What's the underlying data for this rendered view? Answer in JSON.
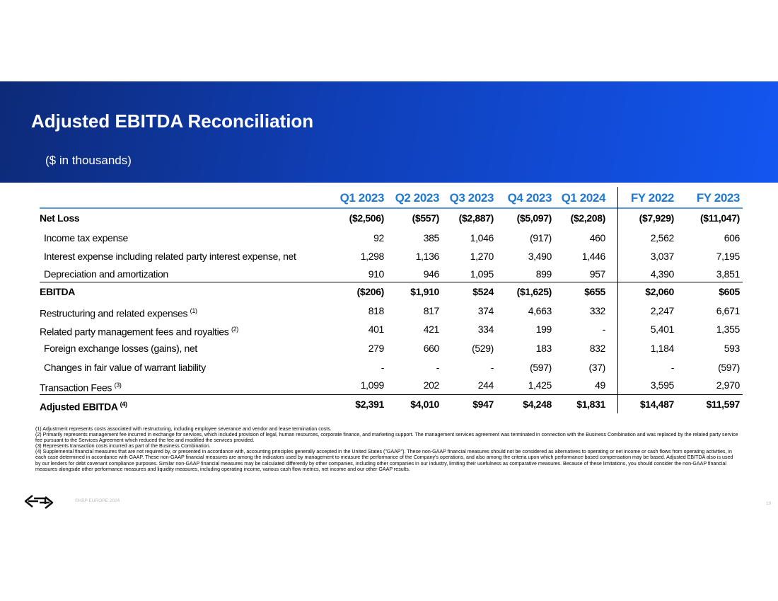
{
  "header": {
    "title": "Adjusted EBITDA Reconciliation",
    "subtitle": "($ in thousands)"
  },
  "table": {
    "columns": [
      "Q1 2023",
      "Q2 2023",
      "Q3 2023",
      "Q4 2023",
      "Q1 2024",
      "FY 2022",
      "FY 2023"
    ],
    "rows": [
      {
        "label": "Net Loss",
        "note": null,
        "values": [
          "($2,506)",
          "($557)",
          "($2,887)",
          "($5,097)",
          "($2,208)",
          "($7,929)",
          "($11,047)"
        ]
      },
      {
        "label": "Income tax expense",
        "note": null,
        "values": [
          "92",
          "385",
          "1,046",
          "(917)",
          "460",
          "2,562",
          "606"
        ]
      },
      {
        "label": "Interest expense including related party interest expense, net",
        "note": null,
        "values": [
          "1,298",
          "1,136",
          "1,270",
          "3,490",
          "1,446",
          "3,037",
          "7,195"
        ]
      },
      {
        "label": "Depreciation and amortization",
        "note": null,
        "values": [
          "910",
          "946",
          "1,095",
          "899",
          "957",
          "4,390",
          "3,851"
        ]
      },
      {
        "label": "EBITDA",
        "note": null,
        "values": [
          "($206)",
          "$1,910",
          "$524",
          "($1,625)",
          "$655",
          "$2,060",
          "$605"
        ]
      },
      {
        "label": "Restructuring and related expenses",
        "note": "(1)",
        "values": [
          "818",
          "817",
          "374",
          "4,663",
          "332",
          "2,247",
          "6,671"
        ]
      },
      {
        "label": "Related party management fees and royalties",
        "note": "(2)",
        "values": [
          "401",
          "421",
          "334",
          "199",
          "-",
          "5,401",
          "1,355"
        ]
      },
      {
        "label": "Foreign exchange losses (gains), net",
        "note": null,
        "values": [
          "279",
          "660",
          "(529)",
          "183",
          "832",
          "1,184",
          "593"
        ]
      },
      {
        "label": "Changes in fair value of warrant liability",
        "note": null,
        "values": [
          "-",
          "-",
          "-",
          "(597)",
          "(37)",
          "-",
          "(597)"
        ]
      },
      {
        "label": "Transaction Fees",
        "note": "(3)",
        "values": [
          "1,099",
          "202",
          "244",
          "1,425",
          "49",
          "3,595",
          "2,970"
        ]
      },
      {
        "label": "Adjusted EBITDA",
        "note": "(4)",
        "values": [
          "$2,391",
          "$4,010",
          "$947",
          "$4,248",
          "$1,831",
          "$14,487",
          "$11,597"
        ]
      }
    ]
  },
  "footnotes": [
    "(1) Adjustment represents costs associated with restructuring, including employee severance and vendor and lease termination costs.",
    "(2) Primarily represents management fee incurred in exchange for services, which included provision of legal, human resources, corporate finance, and marketing support. The management services agreement was terminated in connection with the Business Combination and was replaced by the related party service fee pursuant to the Services Agreement which reduced the fee and modified the services provided.",
    "(3) Represents transaction costs incurred as part of the Business Combination.",
    "(4) Supplemental financial measures that are not required by, or presented in accordance with, accounting principles generally accepted in the United States (\"GAAP\"). These non-GAAP financial measures should not be considered as alternatives to operating or net income or cash flows from operating activities, in each case determined in accordance with GAAP. These non-GAAP financial measures are among the indicators used by management to measure the performance of the Company's operations, and also among the criteria upon which performance-based compensation may be based. Adjusted EBITDA also is used by our lenders for debt covenant compliance purposes. Similar non-GAAP financial measures may be calculated differently by other companies, including other companies in our industry, limiting their usefulness as comparative measures. Because of these limitations, you should consider the non-GAAP financial measures alongside other performance measures and liquidity measures, including operating income, various cash flow metrics, net income and our other GAAP results."
  ],
  "footer": {
    "copyright": "©KBP EUROPE 2024",
    "page": "19"
  }
}
